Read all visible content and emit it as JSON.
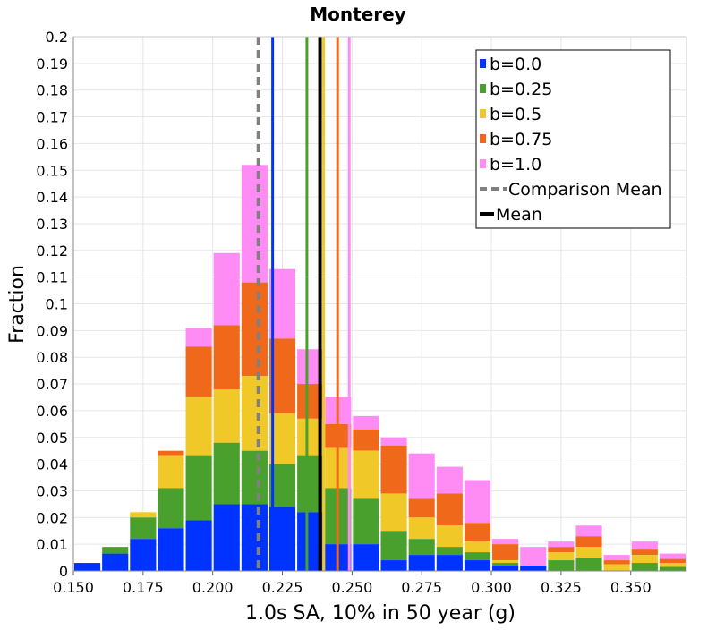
{
  "chart_data": {
    "type": "bar",
    "title": "Monterey",
    "xlabel": "1.0s SA, 10% in 50 year (g)",
    "ylabel": "Fraction",
    "xlim": [
      0.15,
      0.37
    ],
    "ylim": [
      0,
      0.2
    ],
    "bin_width": 0.01,
    "stacked": true,
    "grid": true,
    "legend_position": "top-right",
    "x_ticks": [
      "0.150",
      "0.175",
      "0.200",
      "0.225",
      "0.250",
      "0.275",
      "0.300",
      "0.325",
      "0.350"
    ],
    "y_ticks": [
      "0",
      "0.01",
      "0.02",
      "0.03",
      "0.04",
      "0.05",
      "0.06",
      "0.07",
      "0.08",
      "0.09",
      "0.1",
      "0.11",
      "0.12",
      "0.13",
      "0.14",
      "0.15",
      "0.16",
      "0.17",
      "0.18",
      "0.19",
      "0.2"
    ],
    "bin_starts": [
      0.15,
      0.16,
      0.17,
      0.18,
      0.19,
      0.2,
      0.21,
      0.22,
      0.23,
      0.24,
      0.25,
      0.26,
      0.27,
      0.28,
      0.29,
      0.3,
      0.31,
      0.32,
      0.33,
      0.34,
      0.35,
      0.36
    ],
    "series": [
      {
        "name": "b=0.0",
        "color": "#0033ff",
        "totals": [
          0.003,
          0.0065,
          0.012,
          0.016,
          0.019,
          0.025,
          0.025,
          0.024,
          0.022,
          0.01,
          0.01,
          0.004,
          0.006,
          0.006,
          0.004,
          0.002,
          0.002,
          0,
          0,
          0,
          0,
          0
        ]
      },
      {
        "name": "b=0.25",
        "color": "#4aa02c",
        "totals": [
          0,
          0.009,
          0.02,
          0.031,
          0.043,
          0.048,
          0.045,
          0.04,
          0.043,
          0.031,
          0.027,
          0.015,
          0.012,
          0.009,
          0.007,
          0.003,
          0,
          0.004,
          0.005,
          0,
          0.003,
          0.0015
        ]
      },
      {
        "name": "b=0.5",
        "color": "#f0c827",
        "totals": [
          0,
          0,
          0.022,
          0.043,
          0.065,
          0.068,
          0.073,
          0.059,
          0.057,
          0.046,
          0.045,
          0.029,
          0.02,
          0.017,
          0.011,
          0.004,
          0,
          0.007,
          0.009,
          0.0025,
          0.006,
          0.003
        ]
      },
      {
        "name": "b=0.75",
        "color": "#f0691a",
        "totals": [
          0,
          0,
          0,
          0.045,
          0.084,
          0.092,
          0.108,
          0.087,
          0.07,
          0.055,
          0.053,
          0.047,
          0.027,
          0.029,
          0.018,
          0.01,
          0,
          0.009,
          0.013,
          0.004,
          0.008,
          0.0045
        ]
      },
      {
        "name": "b=1.0",
        "color": "#ff8cf5",
        "totals": [
          0,
          0,
          0,
          0,
          0.091,
          0.119,
          0.152,
          0.113,
          0.083,
          0.065,
          0.058,
          0.05,
          0.044,
          0.039,
          0.034,
          0.012,
          0.009,
          0.011,
          0.017,
          0.006,
          0.011,
          0.0065
        ]
      }
    ],
    "reference_lines": [
      {
        "name": "b=0.0",
        "x": 0.2215,
        "color": "#0033ff",
        "style": "solid"
      },
      {
        "name": "b=0.25",
        "x": 0.2338,
        "color": "#4aa02c",
        "style": "solid"
      },
      {
        "name": "b=0.5",
        "x": 0.2398,
        "color": "#f0c827",
        "style": "solid"
      },
      {
        "name": "b=0.75",
        "x": 0.2448,
        "color": "#f0691a",
        "style": "solid"
      },
      {
        "name": "b=1.0",
        "x": 0.249,
        "color": "#ff8cf5",
        "style": "solid"
      },
      {
        "name": "Comparison Mean",
        "x": 0.2164,
        "color": "#808080",
        "style": "dashed"
      },
      {
        "name": "Mean",
        "x": 0.2385,
        "color": "#000000",
        "style": "solid"
      }
    ],
    "legend": [
      {
        "label": "b=0.0",
        "color": "#0033ff",
        "symbol": "square"
      },
      {
        "label": "b=0.25",
        "color": "#4aa02c",
        "symbol": "square"
      },
      {
        "label": "b=0.5",
        "color": "#f0c827",
        "symbol": "square"
      },
      {
        "label": "b=0.75",
        "color": "#f0691a",
        "symbol": "square"
      },
      {
        "label": "b=1.0",
        "color": "#ff8cf5",
        "symbol": "square"
      },
      {
        "label": "Comparison Mean",
        "color": "#808080",
        "symbol": "dashed-line"
      },
      {
        "label": "Mean",
        "color": "#000000",
        "symbol": "solid-line"
      }
    ]
  }
}
